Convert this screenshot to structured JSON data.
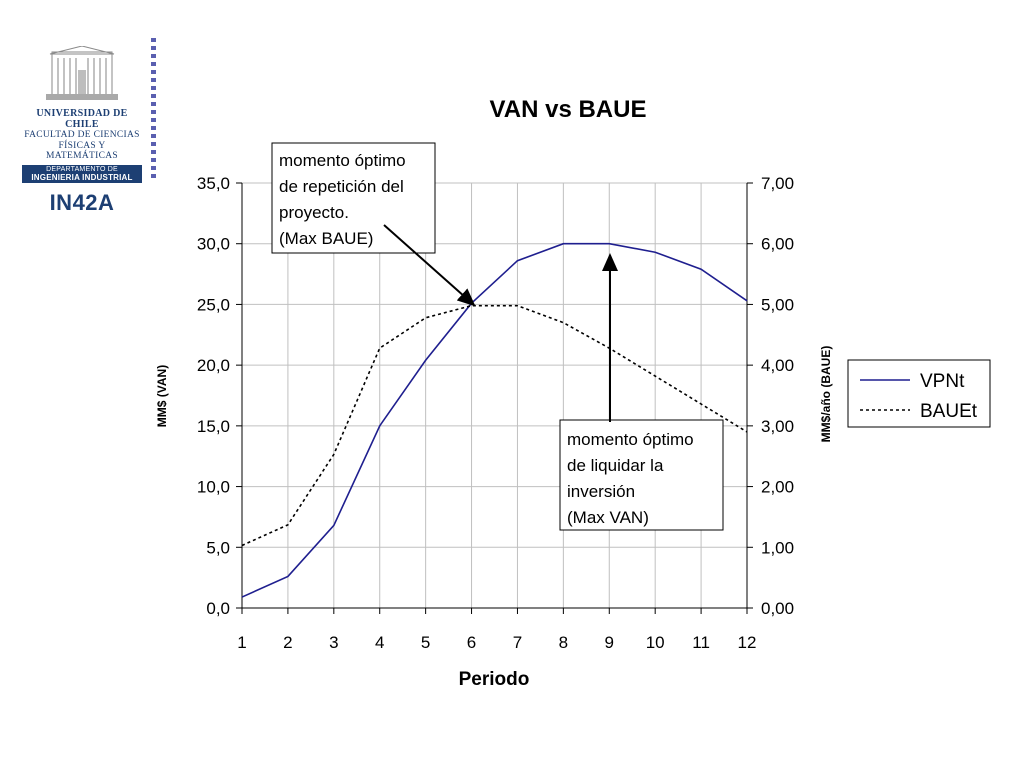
{
  "logo": {
    "line1": "UNIVERSIDAD DE CHILE",
    "line2": "FACULTAD DE CIENCIAS",
    "line3": "FÍSICAS Y MATEMÁTICAS",
    "line4": "DEPARTAMENTO DE",
    "line5": "INGENIERIA INDUSTRIAL",
    "course": "IN42A"
  },
  "chart_data": {
    "type": "line",
    "title": "VAN vs BAUE",
    "xlabel": "Periodo",
    "ylabel": "MM$ (VAN)",
    "y2label": "MM$/año (BAUE)",
    "x": [
      "1",
      "2",
      "3",
      "4",
      "5",
      "6",
      "7",
      "8",
      "9",
      "10",
      "11",
      "12"
    ],
    "ylim": [
      0,
      35
    ],
    "y2lim": [
      0,
      7
    ],
    "yticks": [
      "0,0",
      "5,0",
      "10,0",
      "15,0",
      "20,0",
      "25,0",
      "30,0",
      "35,0"
    ],
    "y2ticks": [
      "0,00",
      "1,00",
      "2,00",
      "3,00",
      "4,00",
      "5,00",
      "6,00",
      "7,00"
    ],
    "grid": true,
    "legend": "right",
    "series": [
      {
        "name": "VPNt",
        "axis": "left",
        "color": "#1f1f8f",
        "style": "solid",
        "values": [
          0.9,
          2.6,
          6.8,
          15.0,
          20.4,
          25.1,
          28.6,
          30.0,
          30.0,
          29.3,
          27.9,
          25.3
        ]
      },
      {
        "name": "BAUEt",
        "axis": "right",
        "color": "#000000",
        "style": "dotted",
        "values": [
          1.03,
          1.37,
          2.53,
          4.28,
          4.78,
          4.98,
          4.98,
          4.7,
          4.28,
          3.82,
          3.36,
          2.9
        ]
      }
    ],
    "annotations": [
      {
        "lines": [
          "momento óptimo",
          "de repetición del",
          "proyecto.",
          "(Max BAUE)"
        ],
        "target_x": 6,
        "target_axis": "left",
        "target_y": 25.0
      },
      {
        "lines": [
          "momento óptimo",
          "de liquidar la",
          " inversión",
          "(Max VAN)"
        ],
        "target_x": 9,
        "target_axis": "left",
        "target_y": 30.0
      }
    ]
  }
}
